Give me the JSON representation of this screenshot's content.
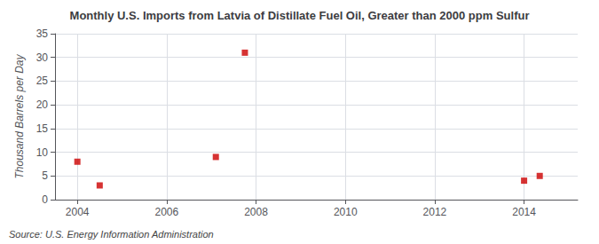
{
  "chart_data": {
    "type": "scatter",
    "title": "Monthly U.S. Imports from Latvia of Distillate Fuel Oil, Greater than 2000 ppm Sulfur",
    "ylabel": "Thousand Barrels per Day",
    "source": "Source: U.S. Energy Information Administration",
    "x": [
      2004.0,
      2004.5,
      2007.1,
      2007.75,
      2014.0,
      2014.35
    ],
    "values": [
      8.0,
      3.0,
      9.0,
      31.0,
      4.0,
      5.0
    ],
    "color": "#cc0000",
    "marker": "square",
    "xlim": [
      2003.5,
      2015.2
    ],
    "xticks": [
      2004,
      2006,
      2008,
      2010,
      2012,
      2014
    ],
    "ylim": [
      0,
      35
    ],
    "yticks": [
      0,
      5,
      10,
      15,
      20,
      25,
      30,
      35
    ],
    "grid": true
  }
}
